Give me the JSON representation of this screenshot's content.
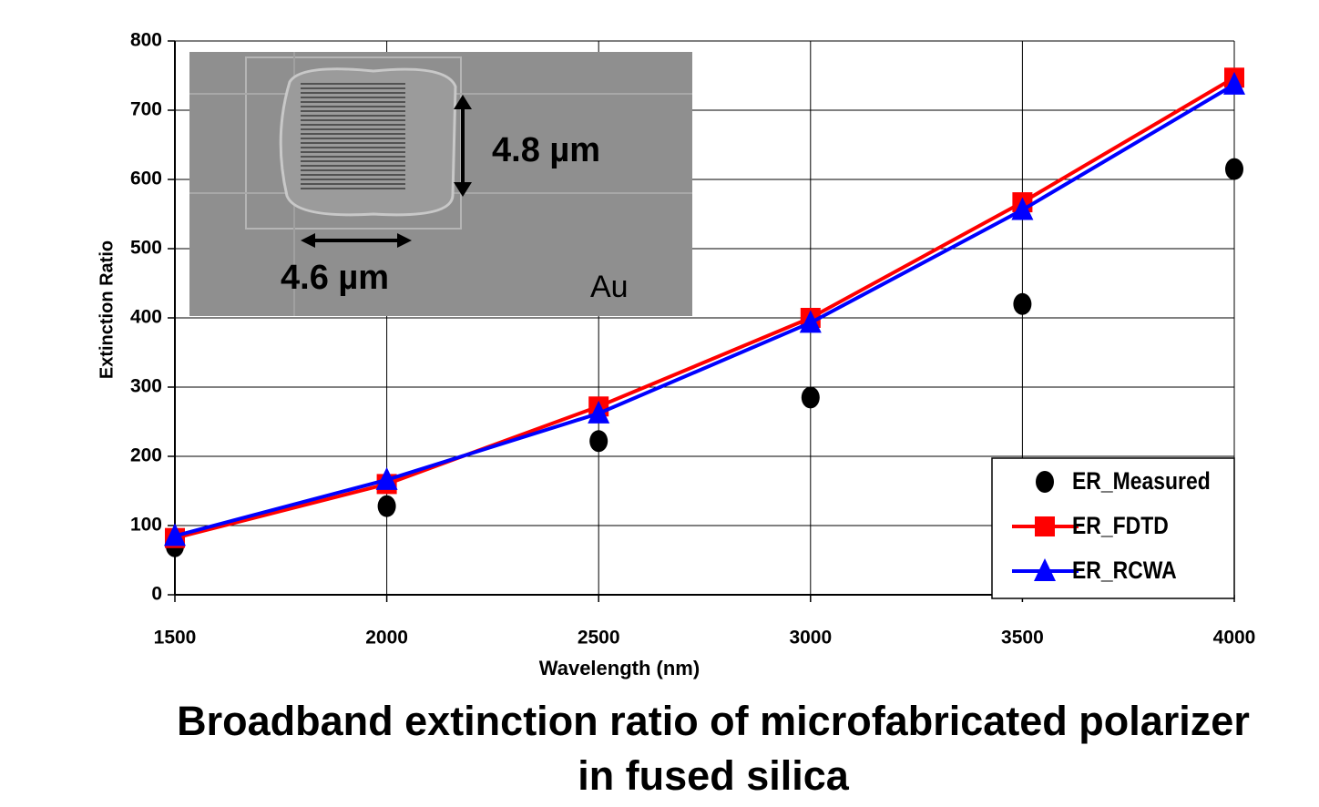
{
  "chart_data": {
    "type": "line",
    "title": "Broadband extinction ratio of microfabricated polarizer in fused silica",
    "x_label": "Wavelength (nm)",
    "y_label": "Extinction Ratio",
    "x": [
      1500,
      2000,
      2500,
      3000,
      3500,
      4000
    ],
    "series": [
      {
        "name": "ER_Measured",
        "color": "#000000",
        "marker": "circle",
        "line": false,
        "values": [
          70,
          128,
          222,
          285,
          420,
          615
        ]
      },
      {
        "name": "ER_FDTD",
        "color": "#ff0000",
        "marker": "square",
        "line": true,
        "values": [
          82,
          160,
          272,
          400,
          567,
          747
        ]
      },
      {
        "name": "ER_RCWA",
        "color": "#0000ff",
        "marker": "triangle",
        "line": true,
        "values": [
          85,
          166,
          262,
          393,
          556,
          737
        ]
      }
    ],
    "xlim": [
      1500,
      4000
    ],
    "xticks": [
      1500,
      2000,
      2500,
      3000,
      3500,
      4000
    ],
    "ylim": [
      0,
      800
    ],
    "yticks": [
      0,
      100,
      200,
      300,
      400,
      500,
      600,
      700,
      800
    ],
    "grid": true,
    "legend": "lower right",
    "annotations": [
      "4.8 µm",
      "4.6 µm",
      "Au"
    ]
  }
}
